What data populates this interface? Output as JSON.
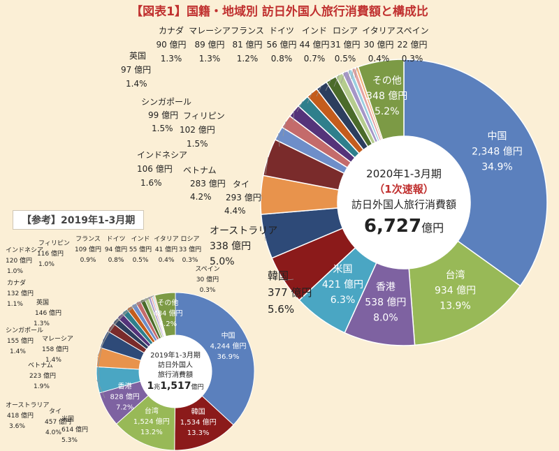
{
  "title": "【図表1】国籍・地域別 訪日外国人旅行消費額と構成比",
  "unit": "億円",
  "chart_data": [
    {
      "type": "pie",
      "variant": "donut",
      "period": "2020年1-3月期",
      "center": {
        "line1": "2020年1-3月期",
        "line2": "（1次速報）",
        "line3": "訪日外国人旅行消費額",
        "total": "6,727",
        "total_unit": "億円"
      },
      "slices": [
        {
          "name": "中国",
          "value": 2348,
          "value_text": "2,348 億円",
          "share": "34.9%",
          "color": "#5b80bd"
        },
        {
          "name": "台湾",
          "value": 934,
          "value_text": "934 億円",
          "share": "13.9%",
          "color": "#98b957"
        },
        {
          "name": "香港",
          "value": 538,
          "value_text": "538 億円",
          "share": "8.0%",
          "color": "#7e62a1"
        },
        {
          "name": "米国",
          "value": 421,
          "value_text": "421 億円",
          "share": "6.3%",
          "color": "#4aa6c3"
        },
        {
          "name": "韓国",
          "value": 377,
          "value_text": "377 億円",
          "share": "5.6%",
          "color": "#8b1a1a"
        },
        {
          "name": "オーストラリア",
          "value": 338,
          "value_text": "338 億円",
          "share": "5.0%",
          "color": "#2e4a78"
        },
        {
          "name": "タイ",
          "value": 293,
          "value_text": "293 億円",
          "share": "4.4%",
          "color": "#e8934c"
        },
        {
          "name": "ベトナム",
          "value": 283,
          "value_text": "283 億円",
          "share": "4.2%",
          "color": "#7a2b2b"
        },
        {
          "name": "インドネシア",
          "value": 106,
          "value_text": "106 億円",
          "share": "1.6%",
          "color": "#6e8ec9"
        },
        {
          "name": "フィリピン",
          "value": 102,
          "value_text": "102 億円",
          "share": "1.5%",
          "color": "#c46b6b"
        },
        {
          "name": "シンガポール",
          "value": 99,
          "value_text": "99 億円",
          "share": "1.5%",
          "color": "#54337a"
        },
        {
          "name": "英国",
          "value": 97,
          "value_text": "97 億円",
          "share": "1.4%",
          "color": "#2f7f8c"
        },
        {
          "name": "カナダ",
          "value": 90,
          "value_text": "90 億円",
          "share": "1.3%",
          "color": "#c45c1c"
        },
        {
          "name": "マレーシア",
          "value": 89,
          "value_text": "89 億円",
          "share": "1.3%",
          "color": "#2c3e5e"
        },
        {
          "name": "フランス",
          "value": 81,
          "value_text": "81 億円",
          "share": "1.2%",
          "color": "#4b6b2a"
        },
        {
          "name": "ドイツ",
          "value": 56,
          "value_text": "56 億円",
          "share": "0.8%",
          "color": "#b5cc8e"
        },
        {
          "name": "インド",
          "value": 44,
          "value_text": "44 億円",
          "share": "0.7%",
          "color": "#a596c7"
        },
        {
          "name": "ロシア",
          "value": 31,
          "value_text": "31 億円",
          "share": "0.5%",
          "color": "#9ccfe0"
        },
        {
          "name": "イタリア",
          "value": 30,
          "value_text": "30 億円",
          "share": "0.4%",
          "color": "#e4a3a3"
        },
        {
          "name": "スペイン",
          "value": 22,
          "value_text": "22 億円",
          "share": "0.3%",
          "color": "#f0b67f"
        },
        {
          "name": "その他",
          "value": 348,
          "value_text": "348 億円",
          "share": "5.2%",
          "color": "#7c9a45"
        }
      ]
    },
    {
      "type": "pie",
      "variant": "donut",
      "badge": "【参考】2019年1-3月期",
      "period": "2019年1-3月期",
      "center": {
        "line1": "2019年1-3月期",
        "line2": "訪日外国人",
        "line3": "旅行消費額",
        "total_a": "1",
        "total_b": "兆",
        "total_c": "1,517",
        "total_unit": "億円"
      },
      "slices": [
        {
          "name": "中国",
          "value": 4244,
          "value_text": "4,244 億円",
          "share": "36.9%",
          "color": "#5b80bd"
        },
        {
          "name": "韓国",
          "value": 1534,
          "value_text": "1,534 億円",
          "share": "13.3%",
          "color": "#8b1a1a"
        },
        {
          "name": "台湾",
          "value": 1524,
          "value_text": "1,524 億円",
          "share": "13.2%",
          "color": "#98b957"
        },
        {
          "name": "香港",
          "value": 828,
          "value_text": "828 億円",
          "share": "7.2%",
          "color": "#7e62a1"
        },
        {
          "name": "米国",
          "value": 614,
          "value_text": "614 億円",
          "share": "5.3%",
          "color": "#4aa6c3"
        },
        {
          "name": "タイ",
          "value": 457,
          "value_text": "457 億円",
          "share": "4.0%",
          "color": "#e8934c"
        },
        {
          "name": "オーストラリア",
          "value": 418,
          "value_text": "418 億円",
          "share": "3.6%",
          "color": "#2e4a78"
        },
        {
          "name": "ベトナム",
          "value": 223,
          "value_text": "223 億円",
          "share": "1.9%",
          "color": "#7a2b2b"
        },
        {
          "name": "マレーシア",
          "value": 158,
          "value_text": "158 億円",
          "share": "1.4%",
          "color": "#2c3e5e"
        },
        {
          "name": "シンガポール",
          "value": 155,
          "value_text": "155 億円",
          "share": "1.4%",
          "color": "#54337a"
        },
        {
          "name": "英国",
          "value": 146,
          "value_text": "146 億円",
          "share": "1.3%",
          "color": "#2f7f8c"
        },
        {
          "name": "カナダ",
          "value": 132,
          "value_text": "132 億円",
          "share": "1.1%",
          "color": "#c45c1c"
        },
        {
          "name": "インドネシア",
          "value": 120,
          "value_text": "120 億円",
          "share": "1.0%",
          "color": "#6e8ec9"
        },
        {
          "name": "フィリピン",
          "value": 116,
          "value_text": "116 億円",
          "share": "1.0%",
          "color": "#c46b6b"
        },
        {
          "name": "フランス",
          "value": 109,
          "value_text": "109 億円",
          "share": "0.9%",
          "color": "#4b6b2a"
        },
        {
          "name": "ドイツ",
          "value": 94,
          "value_text": "94 億円",
          "share": "0.8%",
          "color": "#b5cc8e"
        },
        {
          "name": "インド",
          "value": 55,
          "value_text": "55 億円",
          "share": "0.5%",
          "color": "#a596c7"
        },
        {
          "name": "イタリア",
          "value": 41,
          "value_text": "41 億円",
          "share": "0.4%",
          "color": "#e4a3a3"
        },
        {
          "name": "ロシア",
          "value": 33,
          "value_text": "33 億円",
          "share": "0.3%",
          "color": "#9ccfe0"
        },
        {
          "name": "スペイン",
          "value": 30,
          "value_text": "30 億円",
          "share": "0.3%",
          "color": "#f0b67f"
        },
        {
          "name": "その他",
          "value": 484,
          "value_text": "484 億円",
          "share": "4.2%",
          "color": "#7c9a45"
        }
      ]
    }
  ]
}
